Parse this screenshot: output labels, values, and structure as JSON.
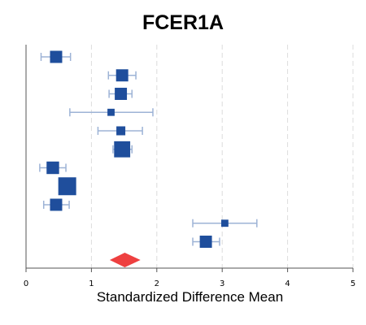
{
  "chart_data": {
    "type": "forest",
    "title": "FCER1A",
    "xlabel": "Standardized Difference Mean",
    "xlim": [
      0,
      5
    ],
    "x_ticks": [
      "0",
      "1",
      "2",
      "3",
      "4",
      "5"
    ],
    "grid": "vertical dashed",
    "colors": {
      "study": "#1f4e9c",
      "ci": "#9db3d6",
      "summary": "#ee4040",
      "grid": "#dcdcdc"
    },
    "studies": [
      {
        "mean": 0.46,
        "ci": [
          0.23,
          0.68
        ],
        "weight": 0.68
      },
      {
        "mean": 1.47,
        "ci": [
          1.26,
          1.68
        ],
        "weight": 0.68
      },
      {
        "mean": 1.45,
        "ci": [
          1.27,
          1.62
        ],
        "weight": 0.68
      },
      {
        "mean": 1.3,
        "ci": [
          0.67,
          1.94
        ],
        "weight": 0.4
      },
      {
        "mean": 1.45,
        "ci": [
          1.1,
          1.78
        ],
        "weight": 0.5
      },
      {
        "mean": 1.47,
        "ci": [
          1.33,
          1.62
        ],
        "weight": 0.9
      },
      {
        "mean": 0.41,
        "ci": [
          0.21,
          0.61
        ],
        "weight": 0.7
      },
      {
        "mean": 0.63,
        "ci": [
          0.53,
          0.73
        ],
        "weight": 1.0
      },
      {
        "mean": 0.46,
        "ci": [
          0.27,
          0.66
        ],
        "weight": 0.68
      },
      {
        "mean": 3.04,
        "ci": [
          2.55,
          3.53
        ],
        "weight": 0.4
      },
      {
        "mean": 2.75,
        "ci": [
          2.55,
          2.96
        ],
        "weight": 0.68
      }
    ],
    "summary": {
      "mean": 1.51,
      "ci": [
        1.28,
        1.75
      ]
    }
  }
}
